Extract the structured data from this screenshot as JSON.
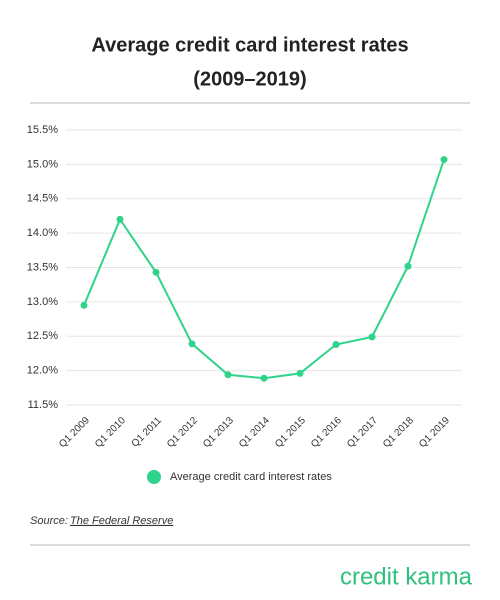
{
  "chart_data": {
    "type": "line",
    "title": "Average credit card interest rates",
    "subtitle": "(2009–2019)",
    "categories": [
      "Q1 2009",
      "Q1 2010",
      "Q1 2011",
      "Q1 2012",
      "Q1 2013",
      "Q1 2014",
      "Q1 2015",
      "Q1 2016",
      "Q1 2017",
      "Q1 2018",
      "Q1 2019"
    ],
    "series": [
      {
        "name": "Average credit card interest rates",
        "color": "#2fd38a",
        "values": [
          12.95,
          14.2,
          13.43,
          12.39,
          11.94,
          11.89,
          11.96,
          12.38,
          12.49,
          13.52,
          15.07
        ]
      }
    ],
    "ylim": [
      11.5,
      15.5
    ],
    "yticks": [
      {
        "value": 11.5,
        "label": "11.5%"
      },
      {
        "value": 12.0,
        "label": "12.0%"
      },
      {
        "value": 12.5,
        "label": "12.5%"
      },
      {
        "value": 13.0,
        "label": "13.0%"
      },
      {
        "value": 13.5,
        "label": "13.5%"
      },
      {
        "value": 14.0,
        "label": "14.0%"
      },
      {
        "value": 14.5,
        "label": "14.5%"
      },
      {
        "value": 15.0,
        "label": "15.0%"
      },
      {
        "value": 15.5,
        "label": "15.5%"
      }
    ],
    "grid": true,
    "legend": "bottom",
    "source_label": "Source:",
    "source": "The Federal Reserve",
    "brand": "credit karma"
  }
}
